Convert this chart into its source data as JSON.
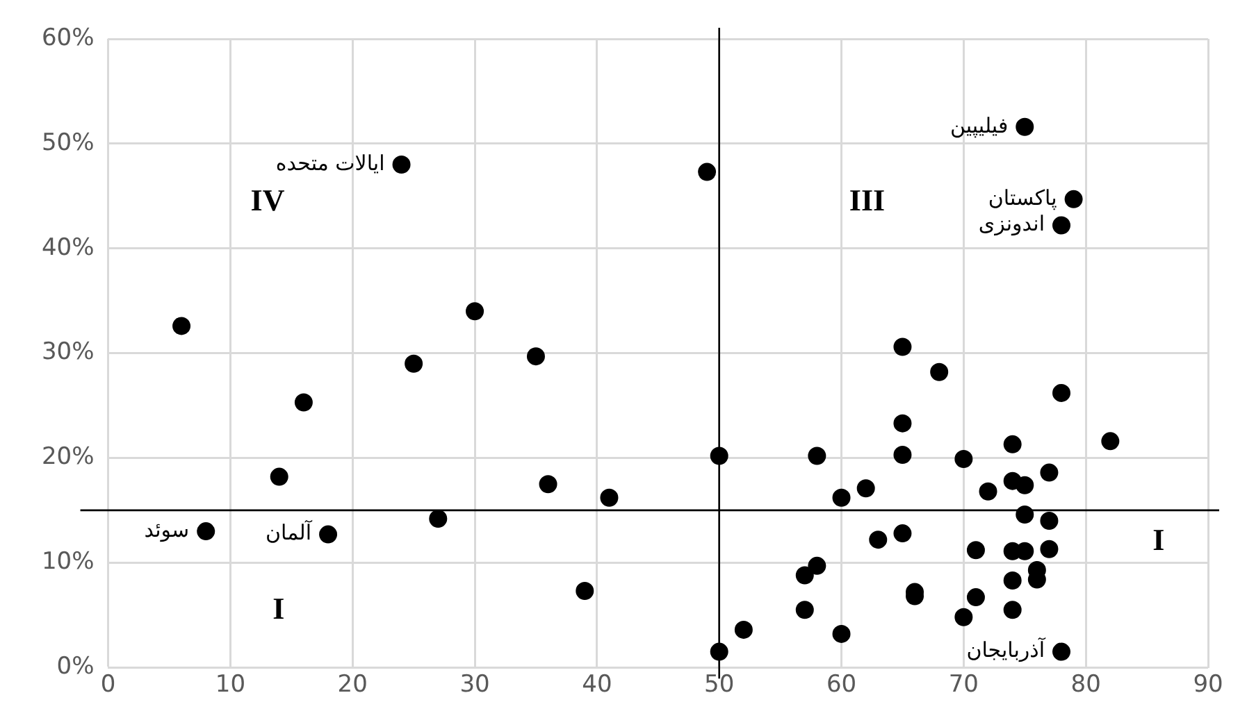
{
  "chart_data": {
    "type": "scatter",
    "x": [
      6,
      8,
      14,
      16,
      18,
      24,
      25,
      27,
      30,
      35,
      36,
      39,
      41,
      49,
      50,
      50,
      52,
      57,
      57,
      58,
      58,
      60,
      60,
      62,
      63,
      65,
      65,
      65,
      65,
      66,
      66,
      68,
      70,
      70,
      71,
      71,
      72,
      74,
      74,
      74,
      74,
      74,
      75,
      75,
      75,
      75,
      76,
      76,
      77,
      77,
      77,
      78,
      78,
      78,
      79,
      82
    ],
    "series": [
      {
        "color": "#000000",
        "values": [
          32.6,
          13,
          18.2,
          25.3,
          12.7,
          48,
          29,
          14.2,
          34,
          29.7,
          17.5,
          7.3,
          16.2,
          47.3,
          20.2,
          1.5,
          3.6,
          8.8,
          5.5,
          9.7,
          20.2,
          16.2,
          3.2,
          17.1,
          12.2,
          30.6,
          23.3,
          20.3,
          12.8,
          7.2,
          6.8,
          28.2,
          19.9,
          4.8,
          11.2,
          6.7,
          16.8,
          21.3,
          17.8,
          11.1,
          8.3,
          5.5,
          51.6,
          17.4,
          14.6,
          11.1,
          9.3,
          8.4,
          18.6,
          14,
          11.3,
          42.2,
          26.2,
          1.5,
          44.7,
          21.6
        ]
      }
    ],
    "xlim": [
      0,
      90
    ],
    "xticks": [
      0,
      10,
      20,
      30,
      40,
      50,
      60,
      70,
      80,
      90
    ],
    "ylim": [
      0,
      60
    ],
    "yticks": [
      {
        "value": 0,
        "label": "0%"
      },
      {
        "value": 10,
        "label": "10%"
      },
      {
        "value": 20,
        "label": "20%"
      },
      {
        "value": 30,
        "label": "30%"
      },
      {
        "value": 40,
        "label": "40%"
      },
      {
        "value": 50,
        "label": "50%"
      },
      {
        "value": 60,
        "label": "60%"
      }
    ],
    "grid": true,
    "legend": false,
    "marker": "circle",
    "ref_lines": [
      {
        "axis": "x",
        "value": 50,
        "color": "#000000"
      },
      {
        "axis": "y",
        "value": 15,
        "color": "#000000"
      }
    ],
    "annotations": [
      {
        "text": "فیلیپین",
        "x": 75,
        "y": 51.6
      },
      {
        "text": "پاکستان",
        "x": 79,
        "y": 44.7
      },
      {
        "text": "اندونزی",
        "x": 78,
        "y": 42.2
      },
      {
        "text": "ایالات متحده",
        "x": 24,
        "y": 48
      },
      {
        "text": "سوئد",
        "x": 8,
        "y": 13
      },
      {
        "text": "آلمان",
        "x": 18,
        "y": 12.7
      },
      {
        "text": "آذربایجان",
        "x": 78,
        "y": 1.5
      },
      "IV",
      "III",
      "I",
      "I"
    ]
  }
}
